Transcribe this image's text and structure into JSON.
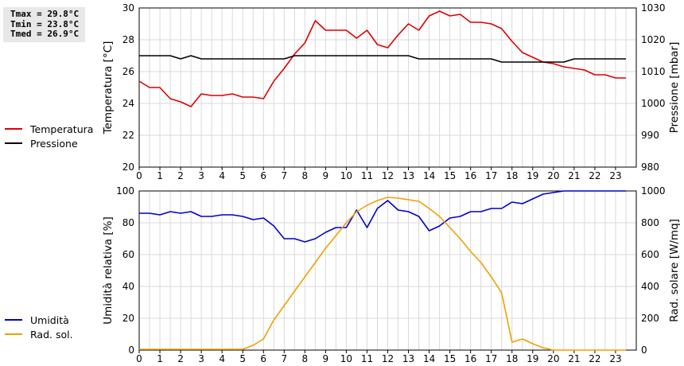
{
  "stats": {
    "tmax": "Tmax = 29.8°C",
    "tmin": "Tmin = 23.8°C",
    "tmed": "Tmed = 26.9°C"
  },
  "chart_data": [
    {
      "type": "line",
      "xlim": [
        0,
        24
      ],
      "x_ticks": [
        "0",
        "1",
        "2",
        "3",
        "4",
        "5",
        "6",
        "7",
        "8",
        "9",
        "10",
        "11",
        "12",
        "13",
        "14",
        "15",
        "16",
        "17",
        "18",
        "19",
        "20",
        "21",
        "22",
        "23"
      ],
      "ylabel": "Temperatura [°C]",
      "ylim": [
        20,
        30
      ],
      "y_ticks": [
        "20",
        "22",
        "24",
        "26",
        "28",
        "30"
      ],
      "y2label": "Pressione [mbar]",
      "y2lim": [
        980,
        1030
      ],
      "y2_ticks": [
        "980",
        "990",
        "1000",
        "1010",
        "1020",
        "1030"
      ],
      "grid": true,
      "legend_position": "left",
      "series": [
        {
          "name": "Temperatura",
          "axis": "left",
          "color": "#dd0000",
          "x": [
            0,
            0.5,
            1,
            1.5,
            2,
            2.5,
            3,
            3.5,
            4,
            4.5,
            5,
            5.5,
            6,
            6.5,
            7,
            7.5,
            8,
            8.5,
            9,
            9.5,
            10,
            10.5,
            11,
            11.5,
            12,
            12.5,
            13,
            13.5,
            14,
            14.5,
            15,
            15.5,
            16,
            16.5,
            17,
            17.5,
            18,
            18.5,
            19,
            19.5,
            20,
            20.5,
            21,
            21.5,
            22,
            22.5,
            23,
            23.5
          ],
          "y": [
            25.4,
            25.0,
            25.0,
            24.3,
            24.1,
            23.8,
            24.6,
            24.5,
            24.5,
            24.6,
            24.4,
            24.4,
            24.3,
            25.4,
            26.2,
            27.1,
            27.8,
            29.2,
            28.6,
            28.6,
            28.6,
            28.1,
            28.6,
            27.7,
            27.5,
            28.3,
            29.0,
            28.6,
            29.5,
            29.8,
            29.5,
            29.6,
            29.1,
            29.1,
            29.0,
            28.7,
            27.9,
            27.2,
            26.9,
            26.6,
            26.5,
            26.3,
            26.2,
            26.1,
            25.8,
            25.8,
            25.6,
            25.6
          ]
        },
        {
          "name": "Pressione",
          "axis": "right",
          "color": "#000000",
          "x": [
            0,
            0.5,
            1,
            1.5,
            2,
            2.5,
            3,
            3.5,
            4,
            4.5,
            5,
            5.5,
            6,
            6.5,
            7,
            7.5,
            8,
            8.5,
            9,
            9.5,
            10,
            10.5,
            11,
            11.5,
            12,
            12.5,
            13,
            13.5,
            14,
            14.5,
            15,
            15.5,
            16,
            16.5,
            17,
            17.5,
            18,
            18.5,
            19,
            19.5,
            20,
            20.5,
            21,
            21.5,
            22,
            22.5,
            23,
            23.5
          ],
          "y": [
            1015,
            1015,
            1015,
            1015,
            1014,
            1015,
            1014,
            1014,
            1014,
            1014,
            1014,
            1014,
            1014,
            1014,
            1014,
            1015,
            1015,
            1015,
            1015,
            1015,
            1015,
            1015,
            1015,
            1015,
            1015,
            1015,
            1015,
            1014,
            1014,
            1014,
            1014,
            1014,
            1014,
            1014,
            1014,
            1013,
            1013,
            1013,
            1013,
            1013,
            1013,
            1013,
            1014,
            1014,
            1014,
            1014,
            1014,
            1014
          ]
        }
      ]
    },
    {
      "type": "line",
      "xlim": [
        0,
        24
      ],
      "x_ticks": [
        "0",
        "1",
        "2",
        "3",
        "4",
        "5",
        "6",
        "7",
        "8",
        "9",
        "10",
        "11",
        "12",
        "13",
        "14",
        "15",
        "16",
        "17",
        "18",
        "19",
        "20",
        "21",
        "22",
        "23"
      ],
      "ylabel": "Umidità relativa [%]",
      "ylim": [
        0,
        100
      ],
      "y_ticks": [
        "0",
        "20",
        "40",
        "60",
        "80",
        "100"
      ],
      "y2label": "Rad. solare [W/mq]",
      "y2lim": [
        0,
        1000
      ],
      "y2_ticks": [
        "0",
        "200",
        "400",
        "600",
        "800",
        "1000"
      ],
      "grid": true,
      "legend_position": "left",
      "series": [
        {
          "name": "Umidità",
          "axis": "left",
          "color": "#0000cc",
          "x": [
            0,
            0.5,
            1,
            1.5,
            2,
            2.5,
            3,
            3.5,
            4,
            4.5,
            5,
            5.5,
            6,
            6.5,
            7,
            7.5,
            8,
            8.5,
            9,
            9.5,
            10,
            10.5,
            11,
            11.5,
            12,
            12.5,
            13,
            13.5,
            14,
            14.5,
            15,
            15.5,
            16,
            16.5,
            17,
            17.5,
            18,
            18.5,
            19,
            19.5,
            20,
            20.5,
            21,
            21.5,
            22,
            22.5,
            23,
            23.5
          ],
          "y": [
            86,
            86,
            85,
            87,
            86,
            87,
            84,
            84,
            85,
            85,
            84,
            82,
            83,
            78,
            70,
            70,
            68,
            70,
            74,
            77,
            77,
            88,
            77,
            89,
            94,
            88,
            87,
            84,
            75,
            78,
            83,
            84,
            87,
            87,
            89,
            89,
            93,
            92,
            95,
            98,
            99,
            100,
            100,
            100,
            100,
            100,
            100,
            100
          ]
        },
        {
          "name": "Rad. sol.",
          "axis": "right",
          "color": "#f0a000",
          "x": [
            0,
            0.5,
            1,
            1.5,
            2,
            2.5,
            3,
            3.5,
            4,
            4.5,
            5,
            5.5,
            6,
            6.5,
            7,
            7.5,
            8,
            8.5,
            9,
            9.5,
            10,
            10.5,
            11,
            11.5,
            12,
            12.5,
            13,
            13.5,
            14,
            14.5,
            15,
            15.5,
            16,
            16.5,
            17,
            17.5,
            18,
            18.5,
            19,
            19.5,
            20,
            20.5,
            21,
            21.5,
            22,
            22.5,
            23,
            23.5
          ],
          "y": [
            5,
            5,
            5,
            5,
            5,
            5,
            5,
            5,
            5,
            5,
            5,
            30,
            70,
            190,
            280,
            370,
            460,
            550,
            640,
            720,
            800,
            870,
            910,
            940,
            960,
            955,
            945,
            935,
            890,
            840,
            770,
            700,
            620,
            550,
            460,
            360,
            50,
            70,
            40,
            15,
            0,
            0,
            0,
            0,
            0,
            0,
            0,
            0
          ]
        }
      ]
    }
  ]
}
